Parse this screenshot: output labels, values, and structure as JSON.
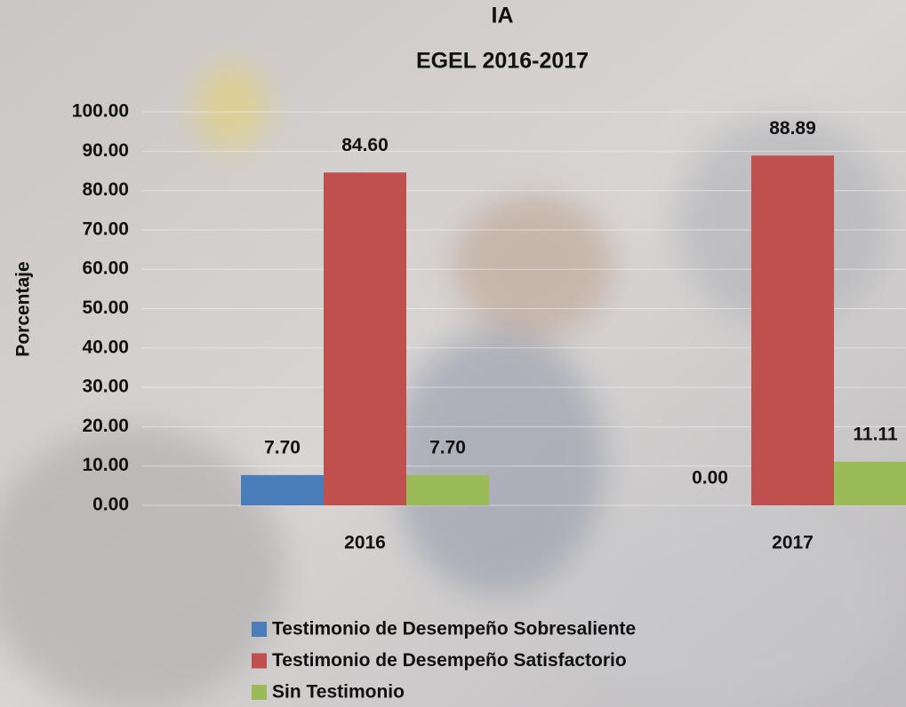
{
  "chart_data": {
    "type": "bar",
    "title": "IA",
    "subtitle": "EGEL 2016-2017",
    "y_label": "Porcentaje",
    "categories": [
      "2016",
      "2017"
    ],
    "series": [
      {
        "name": "Testimonio de Desempeño Sobresaliente",
        "color": "#4a7ebb",
        "values": [
          7.7,
          0
        ],
        "value_labels": [
          "7.70",
          "0.00"
        ]
      },
      {
        "name": "Testimonio de Desempeño Satisfactorio",
        "color": "#c0504d",
        "values": [
          84.6,
          88.89
        ],
        "value_labels": [
          "84.60",
          "88.89"
        ]
      },
      {
        "name": "Sin Testimonio",
        "color": "#9bbb59",
        "values": [
          7.7,
          11.11
        ],
        "value_labels": [
          "7.70",
          "11.11"
        ]
      }
    ],
    "ylim": [
      0,
      100
    ],
    "yticks": [
      {
        "value": 0,
        "label": "0.00"
      },
      {
        "value": 10,
        "label": "10.00"
      },
      {
        "value": 20,
        "label": "20.00"
      },
      {
        "value": 30,
        "label": "30.00"
      },
      {
        "value": 40,
        "label": "40.00"
      },
      {
        "value": 50,
        "label": "50.00"
      },
      {
        "value": 60,
        "label": "60.00"
      },
      {
        "value": 70,
        "label": "70.00"
      },
      {
        "value": 80,
        "label": "80.00"
      },
      {
        "value": 90,
        "label": "90.00"
      },
      {
        "value": 100,
        "label": "100.00"
      }
    ],
    "grid": true,
    "legend": "bottom"
  }
}
